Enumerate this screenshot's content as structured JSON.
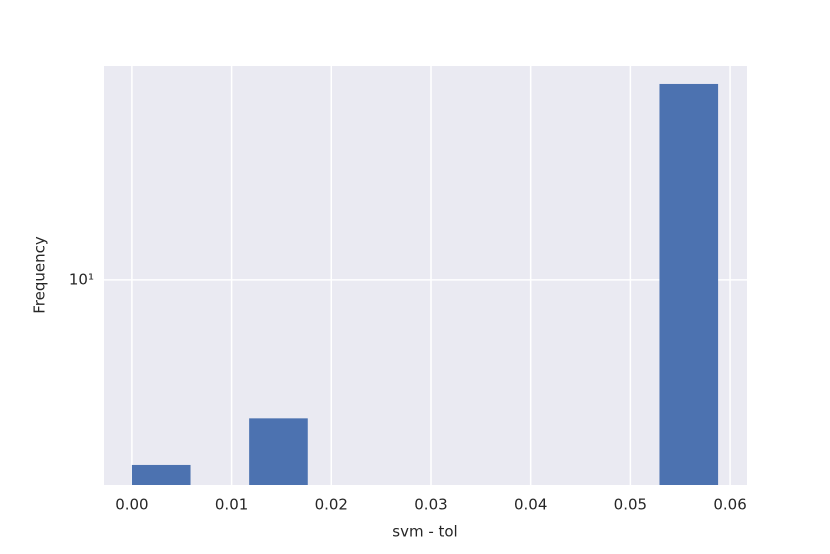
{
  "chart_data": {
    "type": "histogram",
    "x_label": "svm - tol",
    "y_label": "Frequency",
    "bins": [
      0,
      0.00588,
      0.01176,
      0.01764,
      0.02352,
      0.0294,
      0.03528,
      0.04116,
      0.04704,
      0.05292,
      0.0588
    ],
    "values": [
      2,
      0,
      3,
      0,
      0,
      0,
      0,
      0,
      0,
      55
    ],
    "color": "#4c72b0",
    "xlim": [
      -0.0028,
      0.0617
    ],
    "xticks": [
      {
        "value": 0,
        "label": "0.00"
      },
      {
        "value": 0.01,
        "label": "0.01"
      },
      {
        "value": 0.02,
        "label": "0.02"
      },
      {
        "value": 0.03,
        "label": "0.03"
      },
      {
        "value": 0.04,
        "label": "0.04"
      },
      {
        "value": 0.05,
        "label": "0.05"
      },
      {
        "value": 0.06,
        "label": "0.06"
      }
    ],
    "ylim": [
      1.68,
      64.3
    ],
    "yticks": [
      {
        "value": 10,
        "label": "10¹"
      }
    ],
    "y_log": true,
    "grid": true
  }
}
